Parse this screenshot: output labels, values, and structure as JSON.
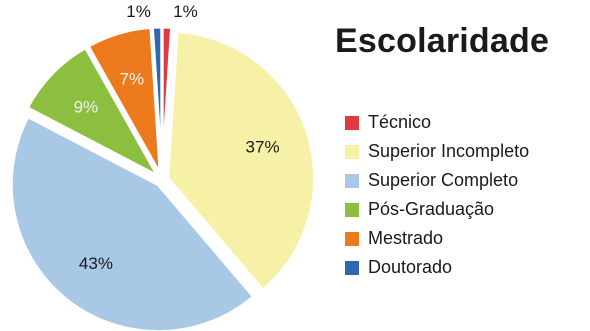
{
  "chart_data": {
    "type": "pie",
    "title": "Escolaridade",
    "slices": [
      {
        "label": "Técnico",
        "value": 1,
        "display": "1%",
        "color": "#e03a3e"
      },
      {
        "label": "Superior Incompleto",
        "value": 37,
        "display": "37%",
        "color": "#f6f1a6"
      },
      {
        "label": "Superior Completo",
        "value": 43,
        "display": "43%",
        "color": "#a9c8e6"
      },
      {
        "label": "Pós-Graduação",
        "value": 9,
        "display": "9%",
        "color": "#8cbf3f"
      },
      {
        "label": "Mestrado",
        "value": 7,
        "display": "7%",
        "color": "#ec7a1c"
      },
      {
        "label": "Doutorado",
        "value": 1,
        "display": "1%",
        "color": "#2f67b1"
      }
    ],
    "legend_position": "right"
  }
}
